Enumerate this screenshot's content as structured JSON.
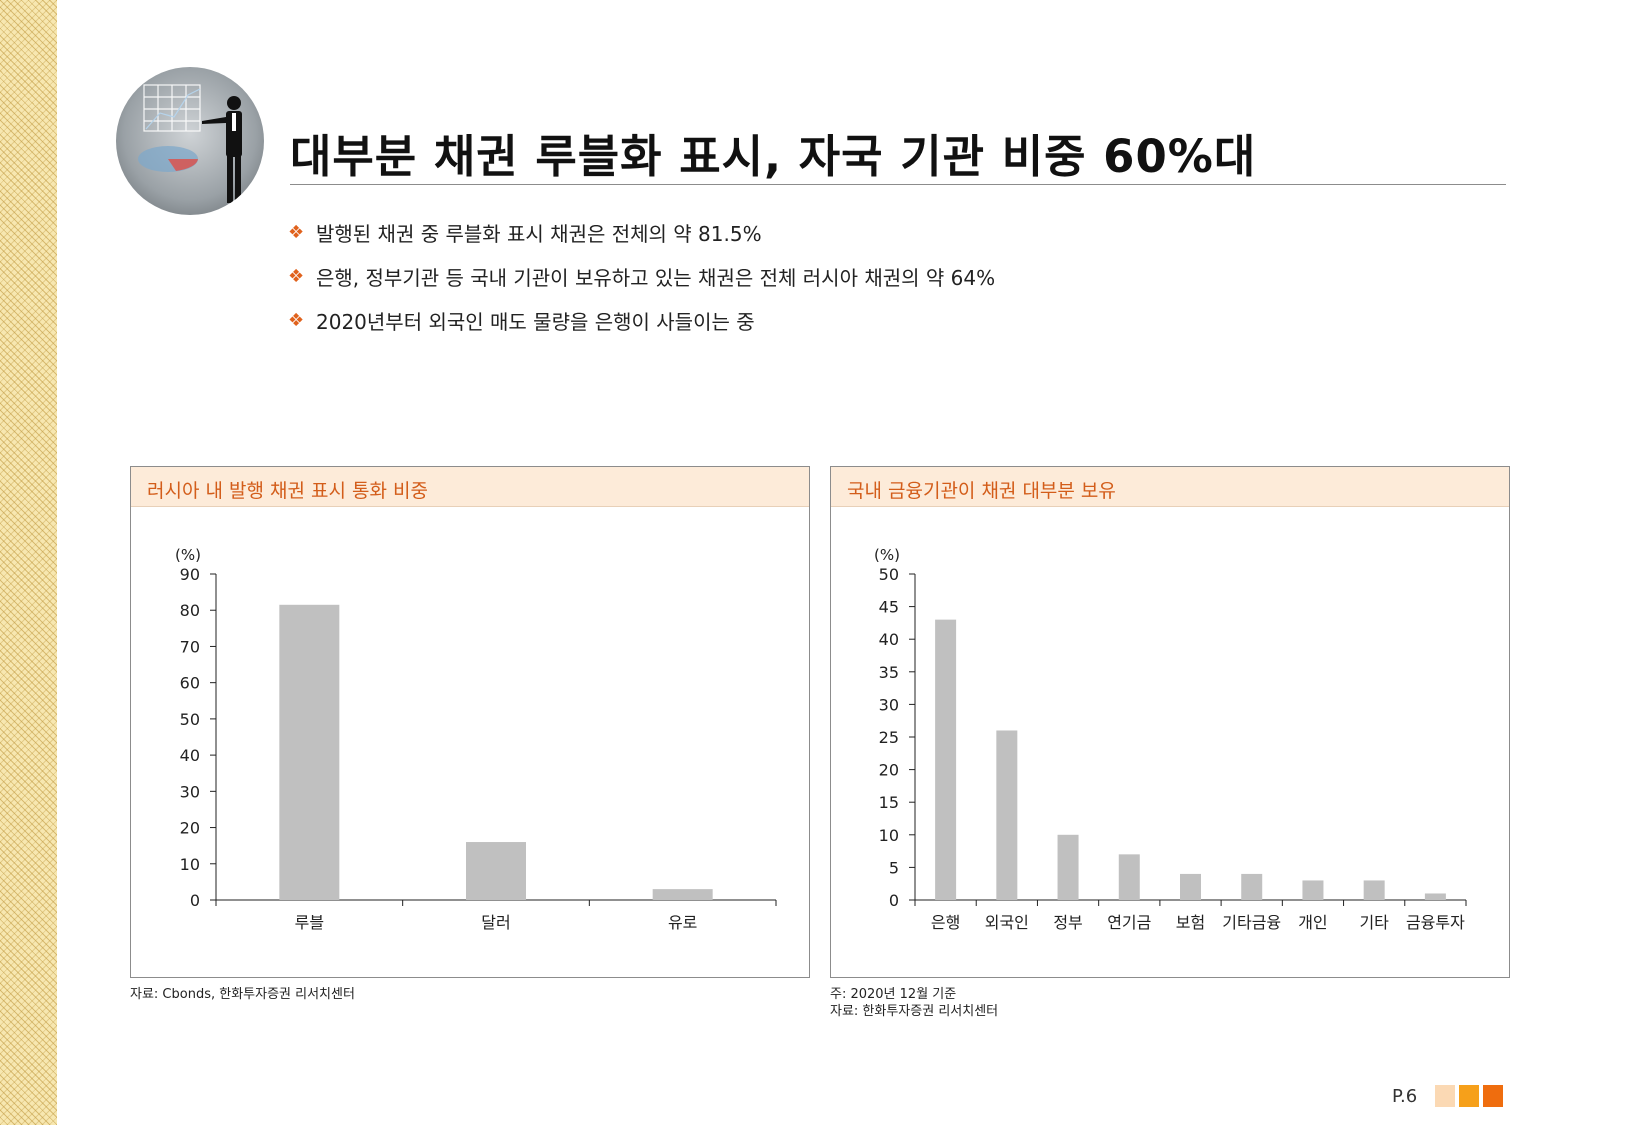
{
  "page": {
    "title": "대부분 채권 루블화 표시, 자국 기관 비중 60%대",
    "bullet_symbol": "❖",
    "bullets": [
      "발행된 채권 중 루블화 표시 채권은 전체의 약 81.5%",
      "은행, 정부기관 등 국내 기관이 보유하고 있는 채권은 전체 러시아 채권의 약 64%",
      "2020년부터 외국인 매도 물량을 은행이 사들이는 중"
    ],
    "page_number": "P.6",
    "accent_colors": [
      "#fbd9b4",
      "#f6a01a",
      "#ef6d0e"
    ]
  },
  "chart_data": [
    {
      "type": "bar",
      "title": "러시아 내 발행 채권 표시 통화 비중",
      "ylabel": "(%)",
      "categories": [
        "루블",
        "달러",
        "유로"
      ],
      "values": [
        81.5,
        16,
        3
      ],
      "ylim": [
        0,
        90
      ],
      "yticks": [
        0,
        10,
        20,
        30,
        40,
        50,
        60,
        70,
        80,
        90
      ],
      "bar_color": "#c0c0c0",
      "source": "자료: Cbonds, 한화투자증권 리서치센터",
      "note": ""
    },
    {
      "type": "bar",
      "title": "국내 금융기관이 채권 대부분 보유",
      "ylabel": "(%)",
      "categories": [
        "은행",
        "외국인",
        "정부",
        "연기금",
        "보험",
        "기타금융",
        "개인",
        "기타",
        "금융투자"
      ],
      "values": [
        43,
        26,
        10,
        7,
        4,
        4,
        3,
        3,
        1
      ],
      "ylim": [
        0,
        50
      ],
      "yticks": [
        0,
        5,
        10,
        15,
        20,
        25,
        30,
        35,
        40,
        45,
        50
      ],
      "bar_color": "#c0c0c0",
      "note": "주: 2020년 12월 기준",
      "source": "자료: 한화투자증권 리서치센터"
    }
  ]
}
